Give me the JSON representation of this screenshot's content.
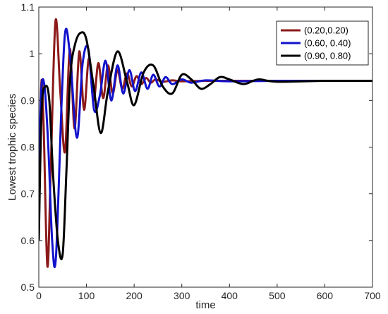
{
  "chart_data": {
    "type": "line",
    "title": "",
    "xlabel": "time",
    "ylabel": "Lowest trophic species",
    "xlim": [
      0,
      700
    ],
    "ylim": [
      0.5,
      1.1
    ],
    "xticks": [
      0,
      100,
      200,
      300,
      400,
      500,
      600,
      700
    ],
    "yticks": [
      0.5,
      0.6,
      0.7,
      0.8,
      0.9,
      1.0,
      1.1
    ],
    "xtick_labels": [
      "0",
      "100",
      "200",
      "300",
      "400",
      "500",
      "600",
      "700"
    ],
    "ytick_labels": [
      "0.5",
      "0.6",
      "0.7",
      "0.8",
      "0.9",
      "1",
      "1.1"
    ],
    "grid": false,
    "box": true,
    "legend_position": "top-right",
    "series": [
      {
        "name": "(0.20,0.20)",
        "color": "#8B1A1A",
        "x": [
          0,
          5,
          10,
          18,
          25,
          35,
          45,
          55,
          65,
          75,
          85,
          95,
          105,
          115,
          125,
          135,
          145,
          155,
          165,
          175,
          185,
          195,
          205,
          215,
          225,
          235,
          245,
          260,
          280,
          300,
          350,
          400,
          500,
          600,
          700
        ],
        "y": [
          0.6,
          0.93,
          0.85,
          0.545,
          0.75,
          1.07,
          0.92,
          0.79,
          1.01,
          0.84,
          1.005,
          0.88,
          0.99,
          0.9,
          0.98,
          0.905,
          0.975,
          0.915,
          0.965,
          0.925,
          0.958,
          0.93,
          0.952,
          0.935,
          0.948,
          0.938,
          0.945,
          0.94,
          0.943,
          0.941,
          0.942,
          0.942,
          0.942,
          0.942,
          0.942
        ]
      },
      {
        "name": "(0.60, 0.40)",
        "color": "#1212CC",
        "x": [
          0,
          5,
          12,
          20,
          28,
          36,
          48,
          56,
          66,
          80,
          92,
          104,
          116,
          128,
          140,
          152,
          165,
          177,
          190,
          202,
          215,
          228,
          240,
          253,
          266,
          280,
          300,
          320,
          350,
          400,
          500,
          600,
          700
        ],
        "y": [
          0.72,
          0.92,
          0.93,
          0.8,
          0.6,
          0.565,
          0.9,
          1.05,
          0.99,
          0.82,
          0.98,
          1.01,
          0.88,
          0.91,
          0.985,
          0.9,
          0.975,
          0.915,
          0.965,
          0.92,
          0.96,
          0.925,
          0.955,
          0.93,
          0.95,
          0.935,
          0.945,
          0.938,
          0.943,
          0.941,
          0.942,
          0.942,
          0.942
        ]
      },
      {
        "name": "(0.90, 0.80)",
        "color": "#000000",
        "x": [
          0,
          6,
          14,
          22,
          30,
          40,
          50,
          58,
          66,
          76,
          88,
          100,
          115,
          130,
          145,
          165,
          185,
          200,
          220,
          240,
          260,
          280,
          300,
          320,
          340,
          360,
          380,
          400,
          430,
          460,
          500,
          600,
          700
        ],
        "y": [
          0.6,
          0.88,
          0.93,
          0.9,
          0.74,
          0.6,
          0.57,
          0.75,
          0.95,
          1.02,
          1.045,
          1.03,
          0.93,
          0.83,
          0.92,
          1.005,
          0.94,
          0.89,
          0.96,
          0.975,
          0.93,
          0.915,
          0.955,
          0.945,
          0.925,
          0.935,
          0.95,
          0.945,
          0.935,
          0.945,
          0.94,
          0.942,
          0.942
        ]
      }
    ]
  }
}
